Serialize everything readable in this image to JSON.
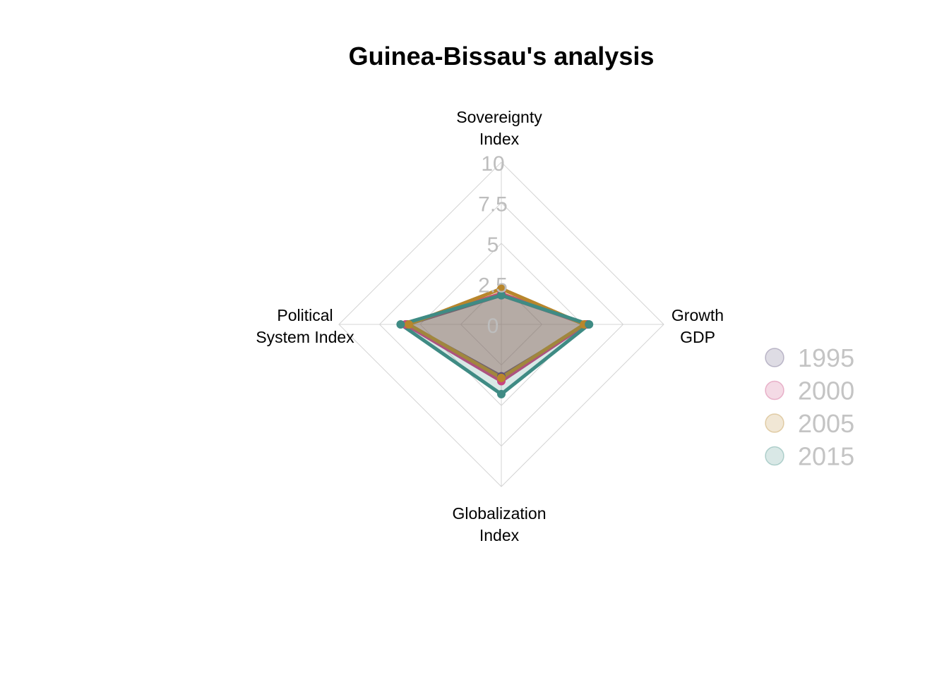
{
  "colors": {
    "grid": "#d4d4d4",
    "tick_text": "#bdbdbd",
    "legend_text": "#c4c4c4",
    "title_text": "#000000"
  },
  "chart_data": {
    "type": "radar",
    "title": "Guinea-Bissau's analysis",
    "axes": [
      [
        "Sovereignty",
        "Index"
      ],
      [
        "Growth",
        "GDP"
      ],
      [
        "Globalization",
        "Index"
      ],
      [
        "Political",
        "System Index"
      ]
    ],
    "rlim": [
      0,
      10
    ],
    "ticks": [
      "0",
      "2.5",
      "5",
      "7.5",
      "10"
    ],
    "grid": true,
    "legend_position": "right",
    "series": [
      {
        "name": "1995",
        "color": "#5b4f7a",
        "values": [
          1.8,
          5.3,
          3.2,
          5.8
        ]
      },
      {
        "name": "2000",
        "color": "#c8457f",
        "values": [
          1.9,
          5.2,
          3.5,
          5.9
        ]
      },
      {
        "name": "2005",
        "color": "#b8862c",
        "values": [
          2.2,
          5.1,
          3.3,
          5.7
        ]
      },
      {
        "name": "2015",
        "color": "#3f8b84",
        "values": [
          1.8,
          5.4,
          4.3,
          6.2
        ]
      }
    ]
  }
}
